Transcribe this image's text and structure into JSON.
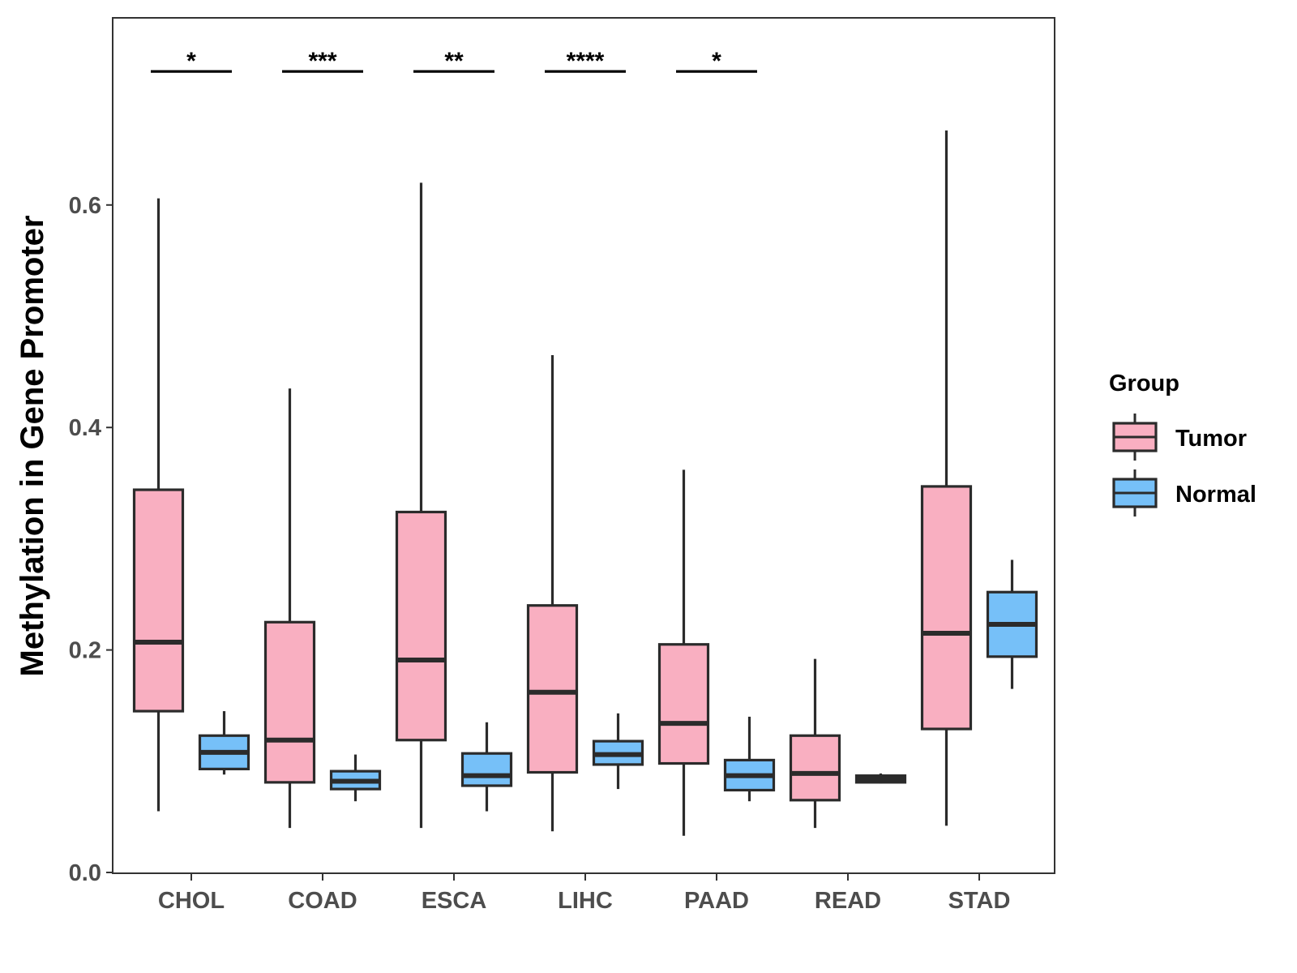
{
  "chart_data": {
    "type": "boxplot",
    "title": "",
    "xlabel": "",
    "ylabel": "Methylation in Gene Promoter",
    "ylim": [
      0,
      0.77
    ],
    "yticks": [
      0.0,
      0.2,
      0.4,
      0.6
    ],
    "ytick_labels": [
      "0.0",
      "0.2",
      "0.4",
      "0.6"
    ],
    "categories": [
      "CHOL",
      "COAD",
      "ESCA",
      "LIHC",
      "PAAD",
      "READ",
      "STAD"
    ],
    "legend": {
      "title": "Group",
      "position": "right",
      "entries": [
        {
          "name": "Tumor",
          "color": "#F9AFC1"
        },
        {
          "name": "Normal",
          "color": "#76C0F8"
        }
      ]
    },
    "series": [
      {
        "name": "Tumor",
        "color": "#F9AFC1",
        "boxes": [
          {
            "min": 0.055,
            "q1": 0.145,
            "median": 0.207,
            "q3": 0.344,
            "max": 0.606
          },
          {
            "min": 0.04,
            "q1": 0.081,
            "median": 0.119,
            "q3": 0.225,
            "max": 0.435
          },
          {
            "min": 0.04,
            "q1": 0.119,
            "median": 0.191,
            "q3": 0.324,
            "max": 0.62
          },
          {
            "min": 0.037,
            "q1": 0.09,
            "median": 0.162,
            "q3": 0.24,
            "max": 0.465
          },
          {
            "min": 0.033,
            "q1": 0.098,
            "median": 0.134,
            "q3": 0.205,
            "max": 0.362
          },
          {
            "min": 0.04,
            "q1": 0.065,
            "median": 0.089,
            "q3": 0.123,
            "max": 0.192
          },
          {
            "min": 0.042,
            "q1": 0.129,
            "median": 0.215,
            "q3": 0.347,
            "max": 0.667
          }
        ]
      },
      {
        "name": "Normal",
        "color": "#76C0F8",
        "boxes": [
          {
            "min": 0.088,
            "q1": 0.093,
            "median": 0.108,
            "q3": 0.123,
            "max": 0.145
          },
          {
            "min": 0.064,
            "q1": 0.075,
            "median": 0.082,
            "q3": 0.091,
            "max": 0.106
          },
          {
            "min": 0.055,
            "q1": 0.078,
            "median": 0.087,
            "q3": 0.107,
            "max": 0.135
          },
          {
            "min": 0.075,
            "q1": 0.097,
            "median": 0.106,
            "q3": 0.118,
            "max": 0.143
          },
          {
            "min": 0.064,
            "q1": 0.074,
            "median": 0.087,
            "q3": 0.101,
            "max": 0.14
          },
          {
            "min": 0.08,
            "q1": 0.081,
            "median": 0.084,
            "q3": 0.087,
            "max": 0.089
          },
          {
            "min": 0.165,
            "q1": 0.194,
            "median": 0.223,
            "q3": 0.252,
            "max": 0.281
          }
        ]
      }
    ],
    "significance": [
      {
        "category": "CHOL",
        "label": "*"
      },
      {
        "category": "COAD",
        "label": "***"
      },
      {
        "category": "ESCA",
        "label": "**"
      },
      {
        "category": "LIHC",
        "label": "****"
      },
      {
        "category": "PAAD",
        "label": "*"
      }
    ],
    "significance_y": 0.72
  }
}
